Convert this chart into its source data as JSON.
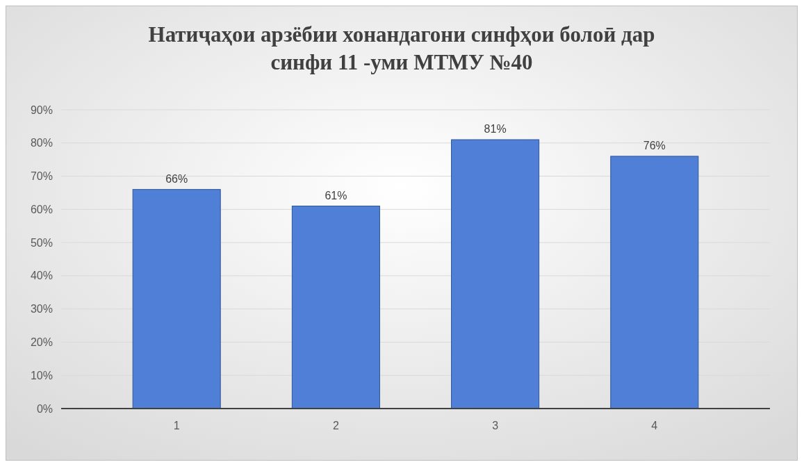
{
  "chart_data": {
    "type": "bar",
    "title": "Натиҷаҳои арзёбии хонандагони синфҳои болоӣ дар синфи 11 -уми МТМУ №40",
    "categories": [
      "1",
      "2",
      "3",
      "4"
    ],
    "values": [
      66,
      61,
      81,
      76
    ],
    "value_labels": [
      "66%",
      "61%",
      "81%",
      "76%"
    ],
    "color": "#4f7fd6",
    "ylim": [
      0,
      90
    ],
    "yticks": [
      {
        "value": 0,
        "label": "0%"
      },
      {
        "value": 10,
        "label": "10%"
      },
      {
        "value": 20,
        "label": "20%"
      },
      {
        "value": 30,
        "label": "30%"
      },
      {
        "value": 40,
        "label": "40%"
      },
      {
        "value": 50,
        "label": "50%"
      },
      {
        "value": 60,
        "label": "60%"
      },
      {
        "value": 70,
        "label": "70%"
      },
      {
        "value": 80,
        "label": "80%"
      },
      {
        "value": 90,
        "label": "90%"
      }
    ],
    "grid": "y"
  }
}
